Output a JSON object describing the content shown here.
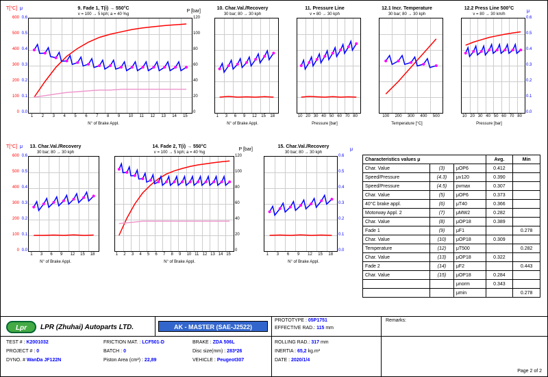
{
  "charts": {
    "c9": {
      "title": "9. Fade 1, T(i) → 550°C",
      "subtitle": "v = 100 → 5 kph; a = 40 %g",
      "xlabel": "N° of Brake Appl.",
      "xticks": [
        "1",
        "2",
        "3",
        "4",
        "5",
        "6",
        "7",
        "8",
        "9",
        "10",
        "11",
        "12",
        "13",
        "14",
        "15"
      ],
      "yl1": "T[°C]",
      "yl1_ticks": [
        "0",
        "100",
        "200",
        "300",
        "400",
        "500",
        "600"
      ],
      "yl1_color": "#f00",
      "yl2": "μ",
      "yl2_ticks": [
        "0.0",
        "0.1",
        "0.2",
        "0.3",
        "0.4",
        "0.5",
        "0.6"
      ],
      "yl2_color": "#00f",
      "yr": "P [bar]",
      "yr_ticks": [
        "0",
        "20",
        "40",
        "60",
        "80",
        "100",
        "120"
      ],
      "grid_color": "#e0e0e0",
      "series": {
        "red": {
          "color": "#f00",
          "width": 1.5,
          "data": [
            100,
            200,
            290,
            360,
            410,
            450,
            480,
            500,
            515,
            530,
            540,
            548,
            555,
            560,
            565
          ]
        },
        "blue": {
          "color": "#00f",
          "width": 1.5,
          "data": [
            0.4,
            0.38,
            0.35,
            0.33,
            0.32,
            0.31,
            0.3,
            0.3,
            0.29,
            0.29,
            0.29,
            0.29,
            0.29,
            0.29,
            0.29
          ],
          "scale": "mu"
        },
        "pink": {
          "color": "#e9c",
          "width": 1.5,
          "data": [
            20,
            22,
            24,
            26,
            27,
            28,
            29,
            29,
            30,
            30,
            30,
            30,
            30,
            30,
            30
          ],
          "scale": "p"
        }
      }
    },
    "c10": {
      "title": "10. Char.Val./Recovery",
      "subtitle": "30 bar; 80 → 30 kph",
      "xlabel": "N° of Brake Appl.",
      "xticks": [
        "1",
        "3",
        "6",
        "9",
        "12",
        "15",
        "18"
      ],
      "series": {
        "red": {
          "color": "#f00",
          "data": [
            100,
            105,
            100,
            102,
            100,
            103,
            100
          ]
        },
        "blue": {
          "color": "#00f",
          "data": [
            0.28,
            0.3,
            0.31,
            0.32,
            0.34,
            0.36,
            0.38
          ],
          "scale": "mu"
        }
      }
    },
    "c11": {
      "title": "11. Pressure Line",
      "subtitle": "v = 80 → 30 kph",
      "xlabel": "Pressure [bar]",
      "xticks": [
        "10",
        "20",
        "30",
        "40",
        "50",
        "60",
        "70",
        "80"
      ],
      "series": {
        "red": {
          "color": "#f00",
          "data": [
            100,
            105,
            102,
            100,
            103,
            100,
            102,
            100
          ]
        },
        "blue": {
          "color": "#00f",
          "data": [
            0.3,
            0.32,
            0.34,
            0.36,
            0.38,
            0.4,
            0.42,
            0.44
          ],
          "scale": "mu"
        }
      }
    },
    "c12_1": {
      "title": "12.1 Incr. Temperature",
      "subtitle": "30 bar; 80 → 30 kph",
      "xlabel": "Temperature [°C]",
      "xticks": [
        "100",
        "200",
        "300",
        "400",
        "500"
      ],
      "series": {
        "red": {
          "color": "#f00",
          "data": [
            120,
            200,
            290,
            380,
            470
          ]
        },
        "blue": {
          "color": "#00f",
          "data": [
            0.33,
            0.33,
            0.32,
            0.31,
            0.3
          ],
          "scale": "mu"
        }
      }
    },
    "c12_2": {
      "title": "12.2  Press Line 500°C",
      "subtitle": "v = 80 → 30 km/h",
      "xlabel": "Pressure [bar]",
      "xticks": [
        "10",
        "20",
        "30",
        "40",
        "50",
        "60",
        "70",
        "80"
      ],
      "yr": "μ",
      "yr_ticks": [
        "0.0",
        "0.1",
        "0.2",
        "0.3",
        "0.4",
        "0.5",
        "0.6"
      ],
      "series": {
        "red": {
          "color": "#f00",
          "data": [
            430,
            450,
            465,
            480,
            490,
            500,
            508,
            515
          ]
        },
        "blue": {
          "color": "#00f",
          "data": [
            0.38,
            0.39,
            0.39,
            0.4,
            0.4,
            0.4,
            0.4,
            0.4
          ],
          "scale": "mu"
        }
      }
    },
    "c13": {
      "title": "13. Char.Val./Recovery",
      "subtitle": "30 bar; 80 → 30 kph",
      "xlabel": "N° of Brake Appl.",
      "xticks": [
        "1",
        "3",
        "6",
        "9",
        "12",
        "15",
        "18"
      ],
      "yl1": "T[°C]",
      "yl1_ticks": [
        "0",
        "100",
        "200",
        "300",
        "400",
        "500",
        "600"
      ],
      "yl2": "μ",
      "yl2_ticks": [
        "0.0",
        "0.1",
        "0.2",
        "0.3",
        "0.4",
        "0.5",
        "0.6"
      ],
      "series": {
        "red": {
          "color": "#f00",
          "data": [
            100,
            100,
            102,
            100,
            103,
            100,
            102
          ]
        },
        "blue": {
          "color": "#00f",
          "data": [
            0.28,
            0.3,
            0.31,
            0.32,
            0.33,
            0.34,
            0.35
          ],
          "scale": "mu"
        }
      }
    },
    "c14": {
      "title": "14. Fade 2, T(i) → 550°C",
      "subtitle": "v = 100 → 5 kph; a = 40 %g",
      "xlabel": "N° of Brake Appl.",
      "xticks": [
        "1",
        "2",
        "3",
        "4",
        "5",
        "6",
        "7",
        "8",
        "9",
        "10",
        "11",
        "12",
        "13",
        "14",
        "15"
      ],
      "yr": "P [bar]",
      "yr_ticks": [
        "0",
        "20",
        "40",
        "60",
        "80",
        "100",
        "120"
      ],
      "series": {
        "red": {
          "color": "#f00",
          "data": [
            100,
            210,
            300,
            370,
            420,
            460,
            490,
            510,
            525,
            538,
            548,
            555,
            562,
            568,
            573
          ]
        },
        "blue": {
          "color": "#00f",
          "data": [
            0.52,
            0.5,
            0.48,
            0.46,
            0.45,
            0.44,
            0.44,
            0.44,
            0.44,
            0.44,
            0.44,
            0.44,
            0.44,
            0.44,
            0.44
          ],
          "scale": "mu"
        },
        "pink": {
          "color": "#e9c",
          "data": [
            35,
            36,
            37,
            38,
            38,
            38,
            38,
            38,
            38,
            38,
            38,
            38,
            38,
            38,
            38
          ],
          "scale": "p"
        }
      }
    },
    "c15": {
      "title": "15. Char.Val./Recovery",
      "subtitle": "30 bar; 80 → 30 kph",
      "xlabel": "N° of Brake Appl.",
      "xticks": [
        "1",
        "3",
        "6",
        "9",
        "12",
        "15",
        "18"
      ],
      "yr": "μ",
      "yr_ticks": [
        "0.0",
        "0.1",
        "0.2",
        "0.3",
        "0.4",
        "0.5",
        "0.6"
      ],
      "series": {
        "red": {
          "color": "#f00",
          "data": [
            100,
            102,
            100,
            103,
            100,
            102,
            100
          ]
        },
        "blue": {
          "color": "#00f",
          "data": [
            0.25,
            0.27,
            0.28,
            0.29,
            0.3,
            0.32,
            0.33
          ],
          "scale": "mu"
        }
      }
    }
  },
  "table": {
    "header": [
      "Characteristics values μ",
      "",
      "",
      "Avg.",
      "Min"
    ],
    "rows": [
      [
        "Char. Value",
        "(3)",
        "μOP6",
        "0.412",
        ""
      ],
      [
        "Speed/Pressure",
        "(4.3)",
        "μv120",
        "0.390",
        ""
      ],
      [
        "Speed/Pressure",
        "(4.5)",
        "pvmax",
        "0.307",
        ""
      ],
      [
        "Char. Value",
        "(5)",
        "μOP6",
        "0.373",
        ""
      ],
      [
        "40°C brake appl.",
        "(6)",
        "μT40",
        "0.366",
        ""
      ],
      [
        "Motorway Appl. 2",
        "(7)",
        "μMW2",
        "0.282",
        ""
      ],
      [
        "Char. Value",
        "(8)",
        "μOP18",
        "0.389",
        ""
      ],
      [
        "Fade 1",
        "(9)",
        "μF1",
        "",
        "0.278"
      ],
      [
        "Char. Value",
        "(10)",
        "μOP18",
        "0.309",
        ""
      ],
      [
        "Temperature",
        "(12)",
        "μT500",
        "",
        "0.282"
      ],
      [
        "Char. Value",
        "(13)",
        "μOP18",
        "0.322",
        ""
      ],
      [
        "Fade 2",
        "(14)",
        "μF2",
        "",
        "0.443"
      ],
      [
        "Char. Value",
        "(15)",
        "μOP18",
        "0.284",
        ""
      ],
      [
        "",
        "",
        "μnorm",
        "0.343",
        ""
      ],
      [
        "",
        "",
        "μmin",
        "",
        "0.278"
      ]
    ]
  },
  "footer": {
    "logo": "Lpr",
    "company": "LPR (Zhuhai) Autoparts LTD.",
    "badge": "AK - MASTER (SAE-J2522)",
    "prototype_lbl": "PROTOTYPE :",
    "prototype": "05P1751",
    "effrad_lbl": "EFFECTIVE RAD.:",
    "effrad": "115",
    "effrad_u": "mm",
    "rollrad_lbl": "ROLLING RAD.:",
    "rollrad": "317",
    "rollrad_u": "mm",
    "inertia_lbl": "INERTIA :",
    "inertia": "65,2",
    "inertia_u": "kg.m²",
    "date_lbl": "DATE :",
    "date": "2020/1/4",
    "test_lbl": "TEST  # :",
    "test": "K2001032",
    "proj_lbl": "PROJECT  # :",
    "proj": "0",
    "dyno_lbl": "DYNO.  #",
    "dyno": "WanDa JF122N",
    "fric_lbl": "FRICTION MAT. :",
    "fric": "LCF501-D",
    "batch_lbl": "BATCH :",
    "batch": "0",
    "piston_lbl": "Piston Area (cm²) :",
    "piston": "22,89",
    "brake_lbl": "BRAKE :",
    "brake": "ZDA 506L",
    "disc_lbl": "Disc size(mm) :",
    "disc": "283*26",
    "vehicle_lbl": "VEHICLE :",
    "vehicle": "Peugeot307",
    "remarks_lbl": "Remarks:",
    "page": "Page 2 of 2"
  }
}
